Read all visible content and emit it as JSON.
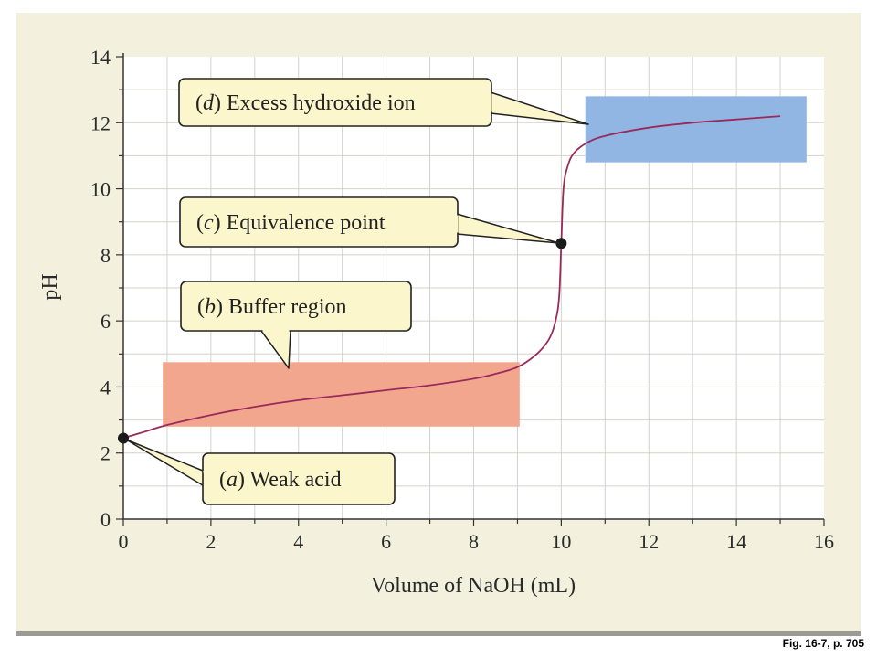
{
  "caption": "Fig. 16-7, p. 705",
  "colors": {
    "panel": "#f4f0de",
    "curve": "#9a2a5a",
    "buffer_region": "#f2a68e",
    "excess_region": "#92b6e4",
    "callout_fill": "#fbf6cc",
    "grid": "#d4d2ca"
  },
  "chart_data": {
    "type": "line",
    "xlabel": "Volume of  NaOH (mL)",
    "ylabel": "pH",
    "xlim": [
      0,
      16
    ],
    "ylim": [
      0,
      14
    ],
    "xticks": [
      0,
      2,
      4,
      6,
      8,
      10,
      12,
      14,
      16
    ],
    "yticks": [
      0,
      2,
      4,
      6,
      8,
      10,
      12,
      14
    ],
    "grid": true,
    "series": [
      {
        "x": [
          0,
          0.5,
          1,
          2,
          3,
          4,
          5,
          6,
          7,
          8,
          8.5,
          9,
          9.4,
          9.7,
          9.85,
          9.95,
          10,
          10.05,
          10.15,
          10.3,
          10.6,
          11,
          12,
          13,
          14,
          15
        ],
        "y": [
          2.45,
          2.65,
          2.85,
          3.15,
          3.4,
          3.6,
          3.75,
          3.9,
          4.05,
          4.25,
          4.4,
          4.6,
          4.95,
          5.4,
          5.9,
          6.7,
          8.35,
          10.0,
          10.7,
          11.1,
          11.4,
          11.6,
          11.85,
          12.0,
          12.1,
          12.2
        ]
      }
    ],
    "points": [
      {
        "label": "a",
        "x": 0,
        "y": 2.45
      },
      {
        "label": "c",
        "x": 10,
        "y": 8.35
      }
    ],
    "regions": [
      {
        "label": "b",
        "x": [
          0.9,
          9.05
        ],
        "y": [
          2.8,
          4.75
        ]
      },
      {
        "label": "d",
        "x": [
          10.55,
          15.6
        ],
        "y": [
          10.8,
          12.8
        ]
      }
    ],
    "annotations": [
      {
        "id": "a",
        "letter": "a",
        "text": "Weak acid"
      },
      {
        "id": "b",
        "letter": "b",
        "text": "Buffer region"
      },
      {
        "id": "c",
        "letter": "c",
        "text": "Equivalence point"
      },
      {
        "id": "d",
        "letter": "d",
        "text": "Excess hydroxide ion"
      }
    ]
  }
}
